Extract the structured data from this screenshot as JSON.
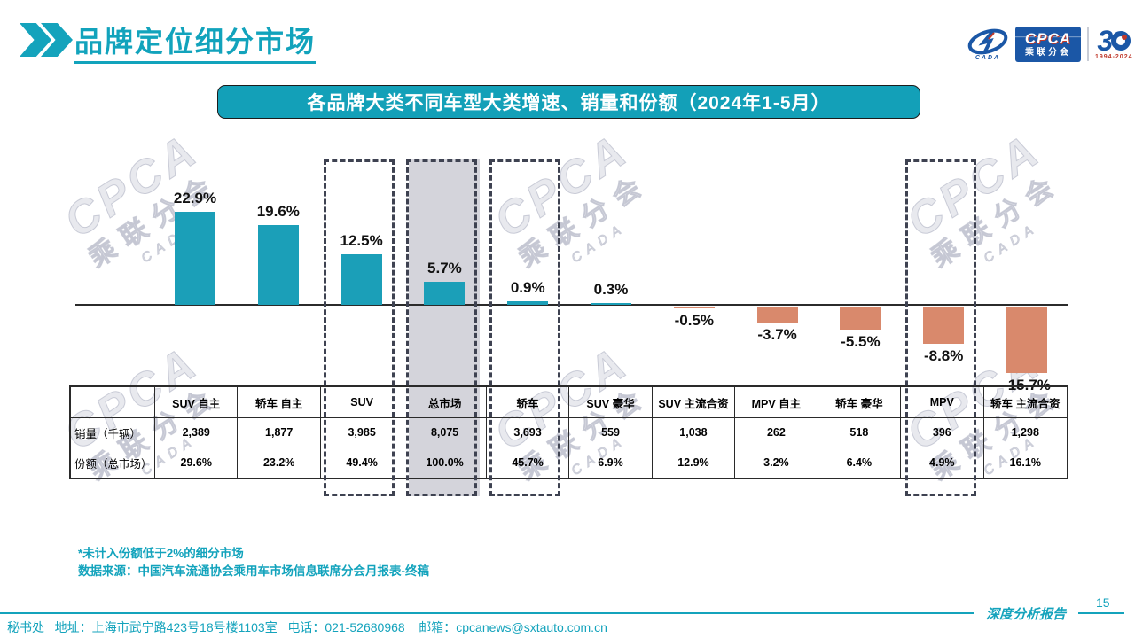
{
  "header": {
    "title": "品牌定位细分市场",
    "logo": {
      "cada": "CADA",
      "cpca": "CPCA",
      "sub": "乘联分会",
      "anniv_3": "3",
      "years": "1994-2024"
    }
  },
  "banner": {
    "text": "各品牌大类不同车型大类增速、销量和份额（2024年1-5月）"
  },
  "chart_data": {
    "type": "bar",
    "title": "各品牌大类不同车型大类增速、销量和份额（2024年1-5月）",
    "categories": [
      "SUV 自主",
      "轿车 自主",
      "SUV",
      "总市场",
      "轿车",
      "SUV 豪华",
      "SUV 主流合资",
      "MPV 自主",
      "轿车 豪华",
      "MPV",
      "轿车 主流合资"
    ],
    "values": [
      22.9,
      19.6,
      12.5,
      5.7,
      0.9,
      0.3,
      -0.5,
      -3.7,
      -5.5,
      -8.8,
      -15.7
    ],
    "value_labels": [
      "22.9%",
      "19.6%",
      "12.5%",
      "5.7%",
      "0.9%",
      "0.3%",
      "-0.5%",
      "-3.7%",
      "-5.5%",
      "-8.8%",
      "-15.7%"
    ],
    "unit": "percent growth",
    "baseline": 0,
    "gridlines": false,
    "legend": "none",
    "positive_color": "#1B9FB8",
    "negative_color": "#D9896C",
    "highlight_boxes": [
      {
        "category": "SUV",
        "index": 2,
        "filled": false
      },
      {
        "category": "总市场",
        "index": 3,
        "filled": true
      },
      {
        "category": "轿车",
        "index": 4,
        "filled": false
      },
      {
        "category": "MPV",
        "index": 9,
        "filled": false
      }
    ]
  },
  "table": {
    "column_headers": [
      "SUV 自主",
      "轿车 自主",
      "SUV",
      "总市场",
      "轿车",
      "SUV 豪华",
      "SUV 主流合资",
      "MPV 自主",
      "轿车 豪华",
      "MPV",
      "轿车 主流合资"
    ],
    "rows": [
      {
        "label": "销量（千辆）",
        "values": [
          "2,389",
          "1,877",
          "3,985",
          "8,075",
          "3,693",
          "559",
          "1,038",
          "262",
          "518",
          "396",
          "1,298"
        ]
      },
      {
        "label": "份额（总市场）",
        "values": [
          "29.6%",
          "23.2%",
          "49.4%",
          "100.0%",
          "45.7%",
          "6.9%",
          "12.9%",
          "3.2%",
          "6.4%",
          "4.9%",
          "16.1%"
        ]
      }
    ]
  },
  "notes": {
    "line1": "*未计入份额低于2%的细分市场",
    "line2": "数据来源：中国汽车流通协会乘用车市场信息联席分会月报表-终稿"
  },
  "footer": {
    "page_number": "15",
    "report_label": "深度分析报告",
    "contact": "秘书处   地址：上海市武宁路423号18号楼1103室   电话：021-52680968    邮箱：cpcanews@sxtauto.com.cn"
  },
  "watermark": {
    "big": "CPCA",
    "cjk": "乘联分会",
    "small": "CADA"
  },
  "colors": {
    "accent_teal": "#14A3BC",
    "bar_positive": "#1B9FB8",
    "bar_negative": "#D9896C",
    "highlight_fill": "#D4D4DB",
    "dashed_border": "#3E4251"
  }
}
